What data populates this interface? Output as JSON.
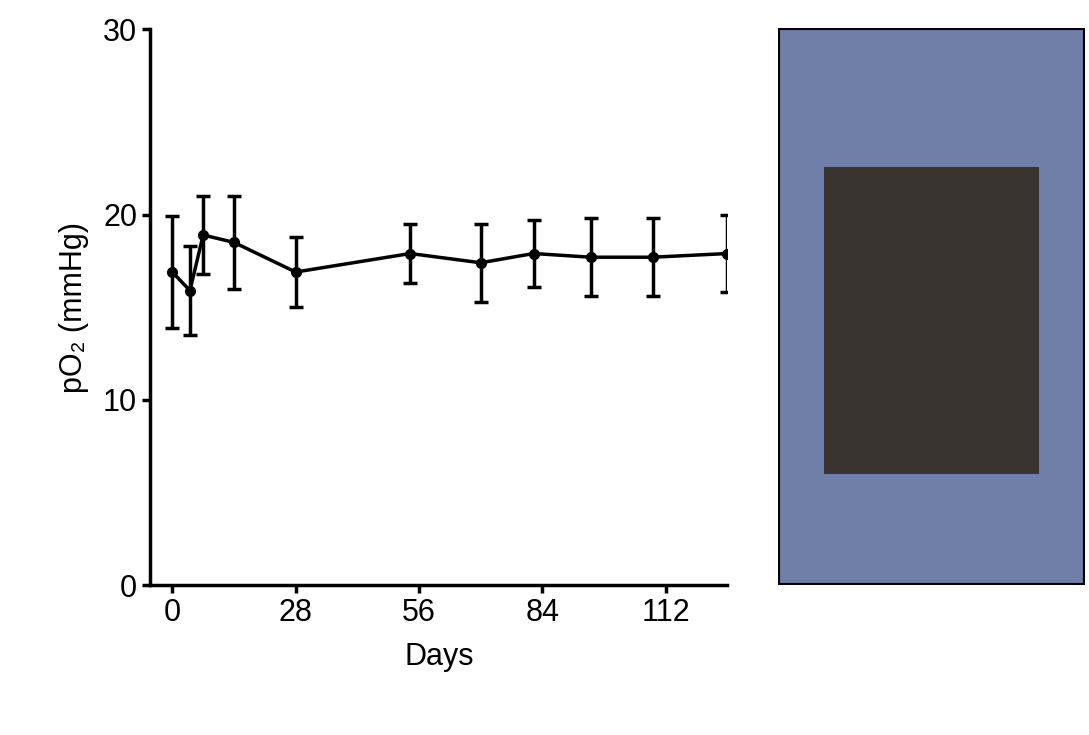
{
  "chart_data": {
    "type": "line",
    "x_label": "Days",
    "y_label": "pO₂ (mmHg)",
    "x": [
      0,
      4,
      7,
      14,
      28,
      54,
      70,
      82,
      95,
      109,
      126
    ],
    "values": [
      16.9,
      15.9,
      18.9,
      18.5,
      16.9,
      17.9,
      17.4,
      17.9,
      17.7,
      17.7,
      17.9
    ],
    "errors": [
      3.0,
      2.4,
      2.1,
      2.5,
      1.9,
      1.6,
      2.1,
      1.8,
      2.1,
      2.1,
      2.1
    ],
    "color": "#000000",
    "marker": "o",
    "line_style": "solid",
    "xlim": [
      -5,
      126
    ],
    "xticks": [
      0,
      28,
      56,
      84,
      112
    ],
    "ylim": [
      0,
      30
    ],
    "yticks": [
      0,
      10,
      20,
      30
    ],
    "grid": false
  }
}
